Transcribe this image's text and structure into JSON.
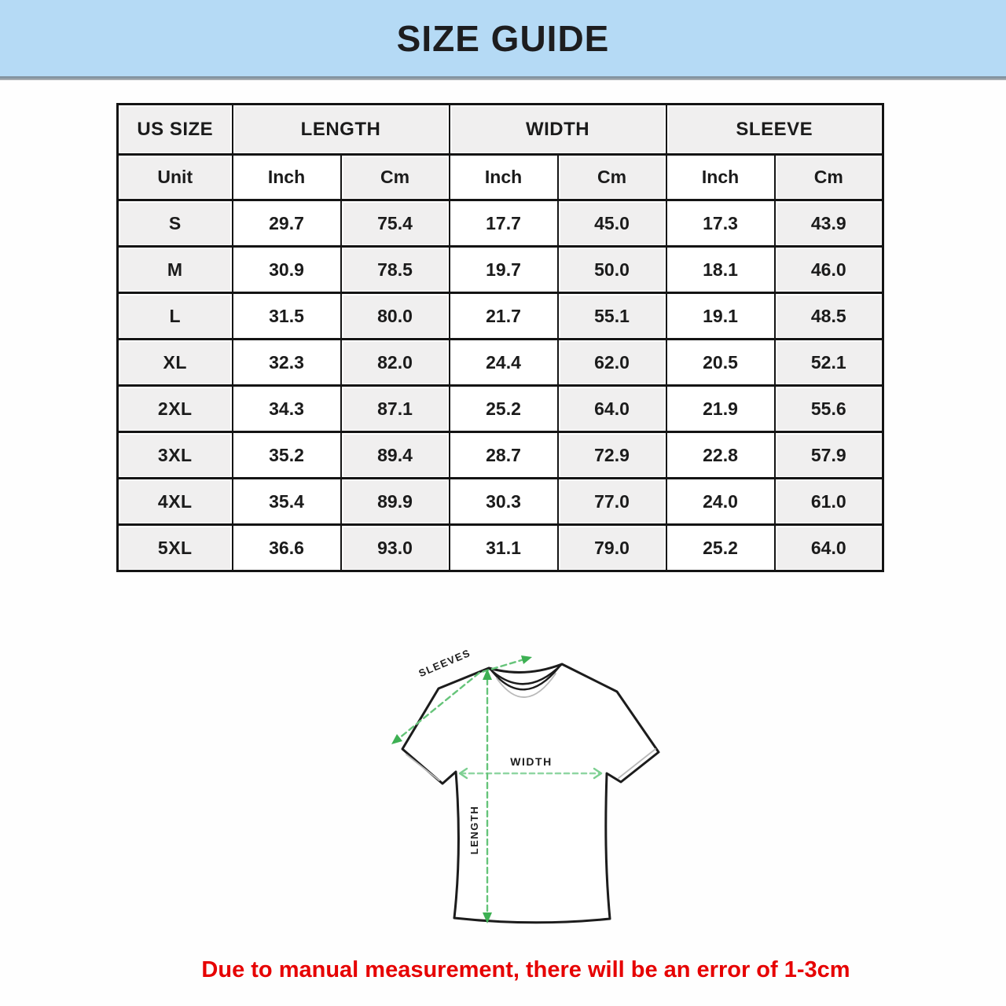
{
  "banner": {
    "title": "SIZE GUIDE"
  },
  "table": {
    "groups": [
      {
        "label": "US SIZE",
        "colspan": 1
      },
      {
        "label": "LENGTH",
        "colspan": 2
      },
      {
        "label": "WIDTH",
        "colspan": 2
      },
      {
        "label": "SLEEVE",
        "colspan": 2
      }
    ],
    "unit_row": [
      "Unit",
      "Inch",
      "Cm",
      "Inch",
      "Cm",
      "Inch",
      "Cm"
    ],
    "rows": [
      {
        "size": "S",
        "values": [
          "29.7",
          "75.4",
          "17.7",
          "45.0",
          "17.3",
          "43.9"
        ]
      },
      {
        "size": "M",
        "values": [
          "30.9",
          "78.5",
          "19.7",
          "50.0",
          "18.1",
          "46.0"
        ]
      },
      {
        "size": "L",
        "values": [
          "31.5",
          "80.0",
          "21.7",
          "55.1",
          "19.1",
          "48.5"
        ]
      },
      {
        "size": "XL",
        "values": [
          "32.3",
          "82.0",
          "24.4",
          "62.0",
          "20.5",
          "52.1"
        ]
      },
      {
        "size": "2XL",
        "values": [
          "34.3",
          "87.1",
          "25.2",
          "64.0",
          "21.9",
          "55.6"
        ]
      },
      {
        "size": "3XL",
        "values": [
          "35.2",
          "89.4",
          "28.7",
          "72.9",
          "22.8",
          "57.9"
        ]
      },
      {
        "size": "4XL",
        "values": [
          "35.4",
          "89.9",
          "30.3",
          "77.0",
          "24.0",
          "61.0"
        ]
      },
      {
        "size": "5XL",
        "values": [
          "36.6",
          "93.0",
          "31.1",
          "79.0",
          "25.2",
          "64.0"
        ]
      }
    ]
  },
  "diagram": {
    "labels": {
      "sleeves": "SLEEVES",
      "width": "WIDTH",
      "length": "LENGTH"
    }
  },
  "note": {
    "text": "Due to manual measurement, there will be an error of 1-3cm"
  },
  "colors": {
    "banner_bg": "#b5daf5",
    "cell_gray": "#f0efef",
    "table_border": "#141414",
    "arrow_green": "#3db053",
    "note_red": "#e60000"
  }
}
